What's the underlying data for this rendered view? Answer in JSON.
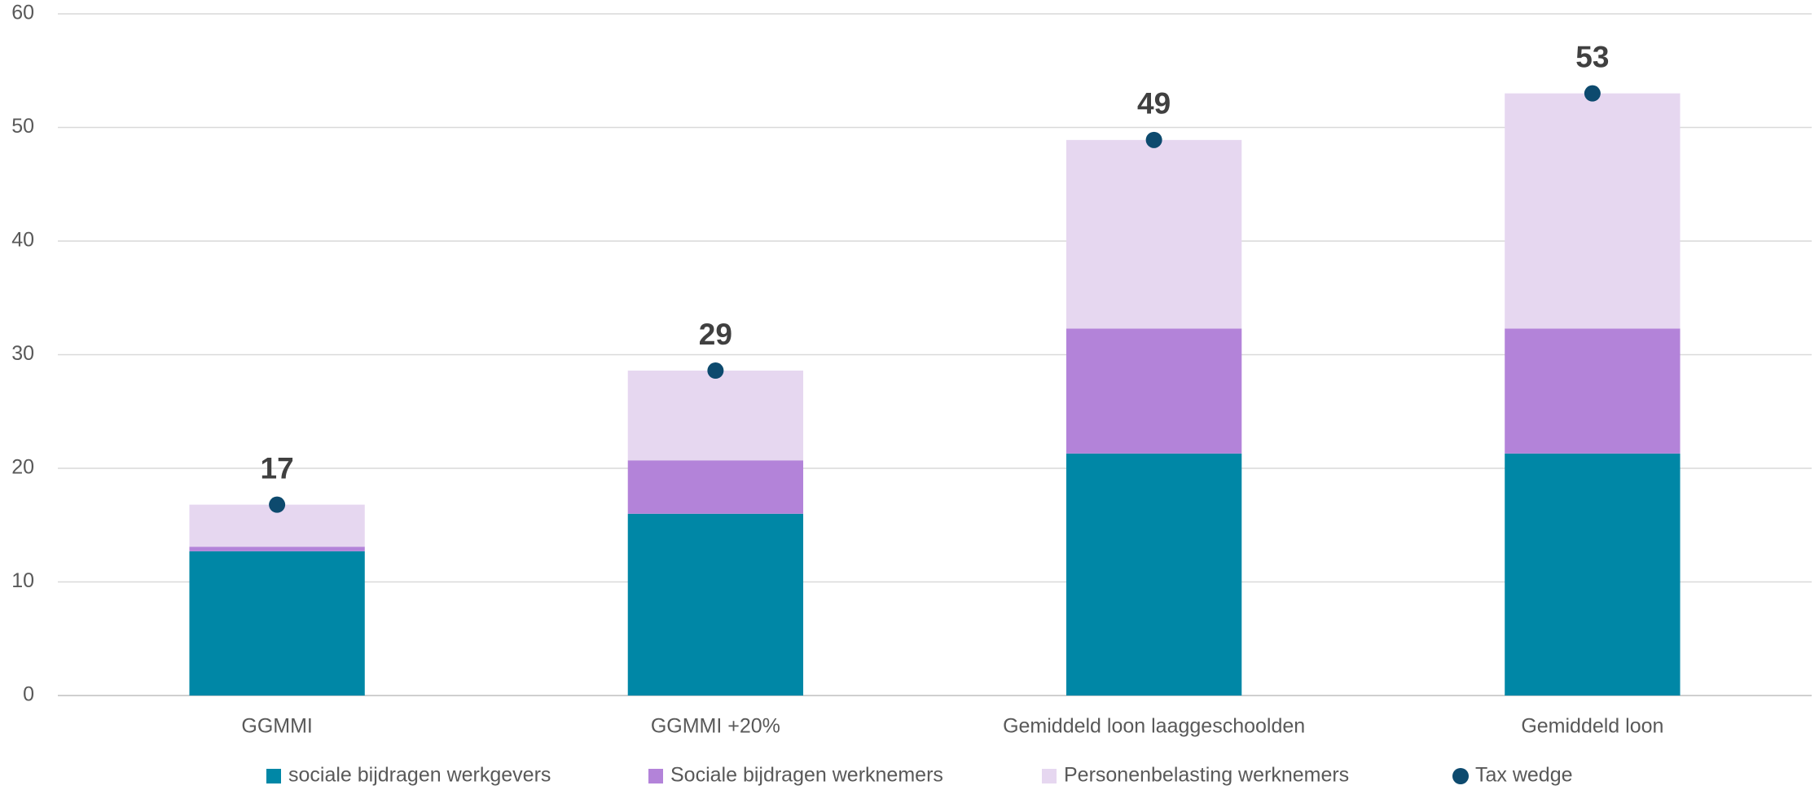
{
  "chart_data": {
    "type": "bar",
    "stacked": true,
    "categories": [
      "GGMMI",
      "GGMMI +20%",
      "Gemiddeld loon laaggeschoolden",
      "Gemiddeld loon"
    ],
    "series": [
      {
        "name": "sociale bijdragen werkgevers",
        "color": "#0087a6",
        "values": [
          12.7,
          16.0,
          21.3,
          21.3
        ]
      },
      {
        "name": "Sociale bijdragen werknemers",
        "color": "#b383d9",
        "values": [
          0.4,
          4.7,
          11.0,
          11.0
        ]
      },
      {
        "name": "Personenbelasting werknemers",
        "color": "#e6d7f0",
        "values": [
          3.7,
          7.9,
          16.6,
          20.7
        ]
      },
      {
        "name": "Tax wedge",
        "type": "scatter",
        "color": "#0d4a6e",
        "values": [
          16.8,
          28.6,
          48.9,
          53.0
        ],
        "value_labels": [
          "17",
          "29",
          "49",
          "53"
        ]
      }
    ],
    "ylim": [
      0,
      60
    ],
    "yticks": [
      0,
      10,
      20,
      30,
      40,
      50,
      60
    ],
    "grid": true,
    "legend": "bottom"
  }
}
